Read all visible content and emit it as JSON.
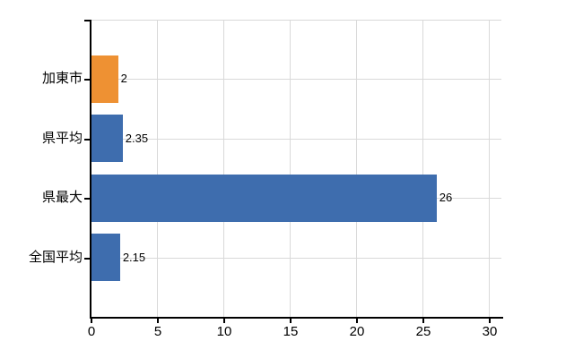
{
  "chart_data": {
    "type": "bar",
    "orientation": "horizontal",
    "title": "",
    "xlabel": "",
    "ylabel": "",
    "categories": [
      "加東市",
      "県平均",
      "県最大",
      "全国平均"
    ],
    "values": [
      2,
      2.35,
      26,
      2.15
    ],
    "value_labels": [
      "2",
      "2.35",
      "26",
      "2.15"
    ],
    "bar_colors": [
      "#EE9133",
      "#3E6DAE",
      "#3E6DAE",
      "#3E6DAE"
    ],
    "xticks": [
      0,
      5,
      10,
      15,
      20,
      25,
      30
    ],
    "xlim": [
      0,
      31.1
    ],
    "grid": true,
    "legend": false,
    "colors": {
      "axis": "#000000",
      "grid": "#D9D9D9",
      "text": "#000000",
      "background": "#FFFFFF",
      "highlight_bar": "#EE9133",
      "default_bar": "#3E6DAE"
    }
  }
}
